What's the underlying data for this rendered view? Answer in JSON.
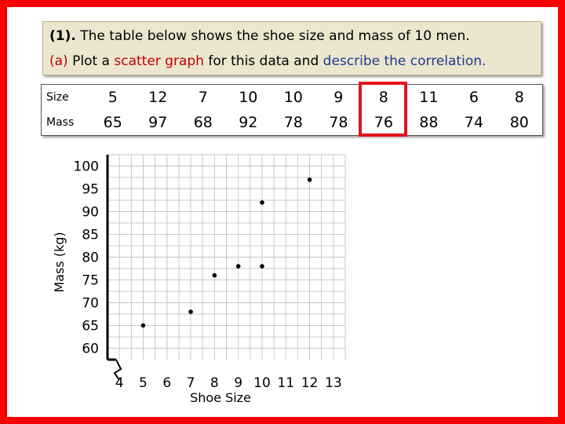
{
  "question": {
    "number": "(1).",
    "text": "The table below shows the shoe size and mass of 10 men.",
    "part_label": "(a)",
    "part_text_plain": "Plot a",
    "part_text_red": "scatter graph",
    "part_text_mid": "for this data and",
    "part_text_blue": "describe the correlation."
  },
  "table": {
    "row_labels": [
      "Size",
      "Mass"
    ],
    "sizes": [
      "5",
      "12",
      "7",
      "10",
      "10",
      "9",
      "8",
      "11",
      "6",
      "8"
    ],
    "masses": [
      "65",
      "97",
      "68",
      "92",
      "78",
      "78",
      "76",
      "88",
      "74",
      "80"
    ],
    "highlight_column": 6,
    "highlight_color": "#e0141e"
  },
  "chart_data": {
    "type": "scatter",
    "xlabel": "Shoe Size",
    "ylabel": "Mass (kg)",
    "x_ticks": [
      4,
      5,
      6,
      7,
      8,
      9,
      10,
      11,
      12,
      13
    ],
    "y_ticks": [
      60,
      65,
      70,
      75,
      80,
      85,
      90,
      95,
      100
    ],
    "xlim": [
      3.5,
      13.5
    ],
    "ylim": [
      57.5,
      102.5
    ],
    "grid": true,
    "points": [
      {
        "x": 5,
        "y": 65
      },
      {
        "x": 7,
        "y": 68
      },
      {
        "x": 8,
        "y": 76
      },
      {
        "x": 9,
        "y": 78
      },
      {
        "x": 10,
        "y": 78
      },
      {
        "x": 10,
        "y": 92
      },
      {
        "x": 12,
        "y": 97
      }
    ]
  }
}
